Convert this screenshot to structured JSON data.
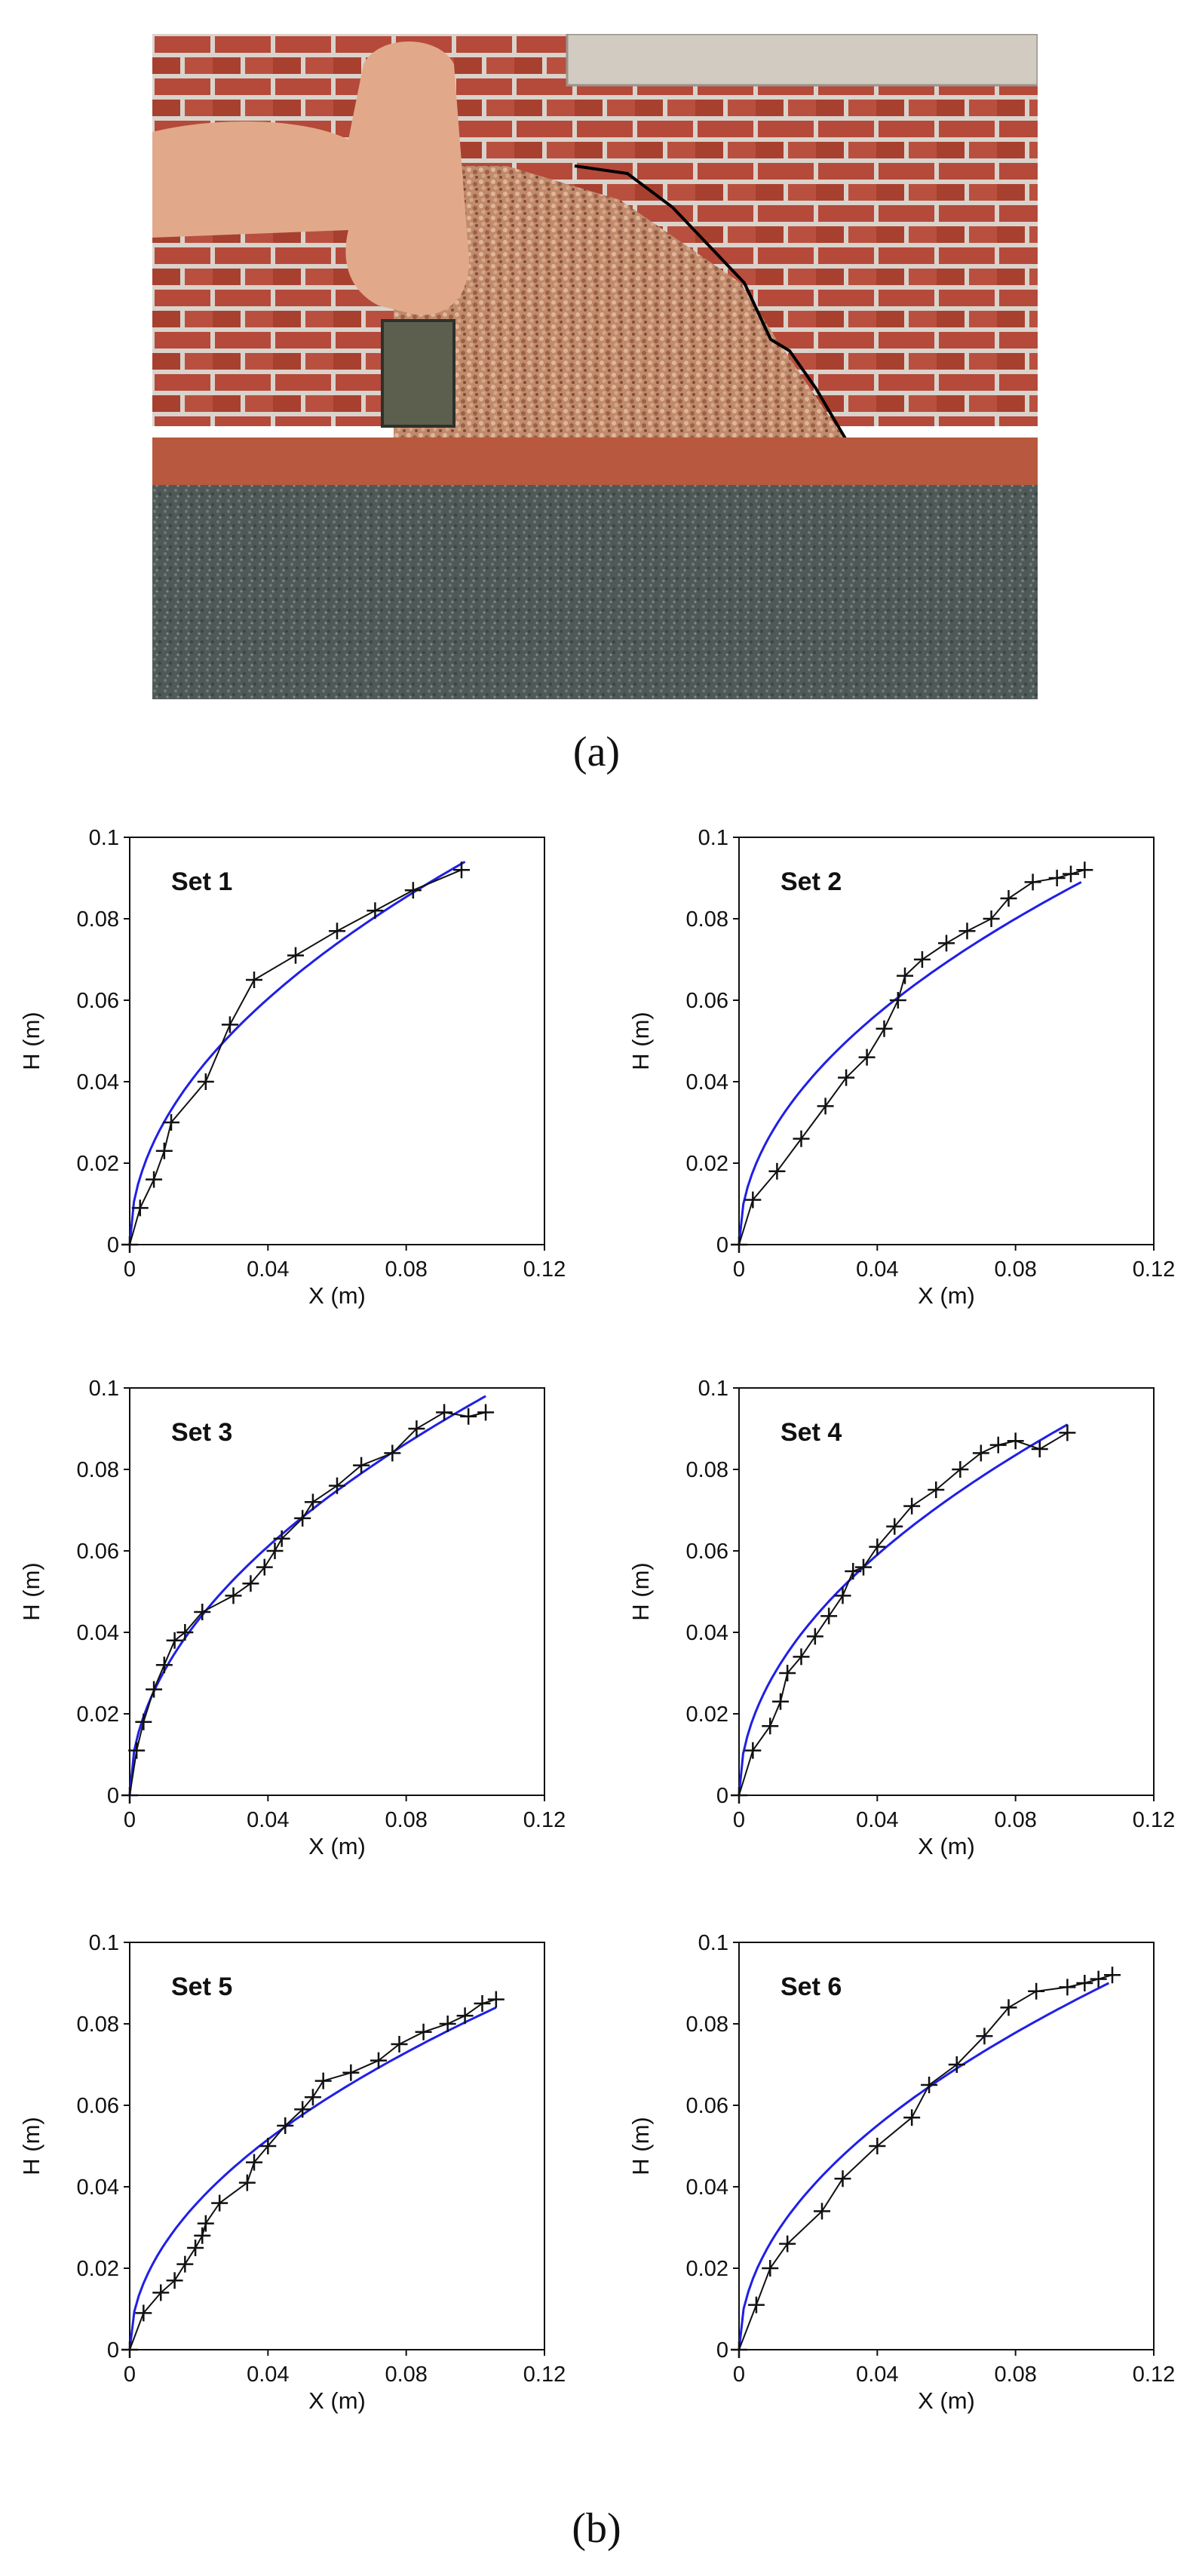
{
  "captions": {
    "a": "(a)",
    "b": "(b)"
  },
  "colors": {
    "fit": "#1f1fe6",
    "data": "#111111"
  },
  "chart_data": [
    {
      "type": "line",
      "title": "Set 1",
      "xlabel": "X (m)",
      "ylabel": "H (m)",
      "xlim": [
        0,
        0.12
      ],
      "ylim": [
        0,
        0.1
      ],
      "xticks": [
        0,
        0.04,
        0.08,
        0.12
      ],
      "yticks": [
        0,
        0.02,
        0.04,
        0.06,
        0.08,
        0.1
      ],
      "xtick_labels": [
        "0",
        "0.04",
        "0.08",
        "0.12"
      ],
      "ytick_labels": [
        "0",
        "0.02",
        "0.04",
        "0.06",
        "0.08",
        "0.1"
      ],
      "grid": false,
      "legend": "none",
      "series": [
        {
          "style": "line-plus-markers",
          "color": "#111111",
          "x": [
            0,
            0.003,
            0.007,
            0.01,
            0.012,
            0.022,
            0.029,
            0.036,
            0.048,
            0.06,
            0.071,
            0.082,
            0.096
          ],
          "y": [
            0,
            0.009,
            0.016,
            0.023,
            0.03,
            0.04,
            0.054,
            0.065,
            0.071,
            0.077,
            0.082,
            0.087,
            0.092
          ]
        },
        {
          "style": "fit-curve",
          "color": "#1f1fe6",
          "x_end": 0.097,
          "y_end": 0.094,
          "exponent": 0.5
        }
      ]
    },
    {
      "type": "line",
      "title": "Set 2",
      "xlabel": "X (m)",
      "ylabel": "H (m)",
      "xlim": [
        0,
        0.12
      ],
      "ylim": [
        0,
        0.1
      ],
      "xticks": [
        0,
        0.04,
        0.08,
        0.12
      ],
      "yticks": [
        0,
        0.02,
        0.04,
        0.06,
        0.08,
        0.1
      ],
      "xtick_labels": [
        "0",
        "0.04",
        "0.08",
        "0.12"
      ],
      "ytick_labels": [
        "0",
        "0.02",
        "0.04",
        "0.06",
        "0.08",
        "0.1"
      ],
      "grid": false,
      "legend": "none",
      "series": [
        {
          "style": "line-plus-markers",
          "color": "#111111",
          "x": [
            0,
            0.004,
            0.011,
            0.018,
            0.025,
            0.031,
            0.037,
            0.042,
            0.046,
            0.048,
            0.053,
            0.06,
            0.066,
            0.073,
            0.078,
            0.085,
            0.092,
            0.096,
            0.1
          ],
          "y": [
            0,
            0.011,
            0.018,
            0.026,
            0.034,
            0.041,
            0.046,
            0.053,
            0.06,
            0.066,
            0.07,
            0.074,
            0.077,
            0.08,
            0.085,
            0.089,
            0.09,
            0.091,
            0.092
          ]
        },
        {
          "style": "fit-curve",
          "color": "#1f1fe6",
          "x_end": 0.099,
          "y_end": 0.089,
          "exponent": 0.5
        }
      ]
    },
    {
      "type": "line",
      "title": "Set 3",
      "xlabel": "X (m)",
      "ylabel": "H (m)",
      "xlim": [
        0,
        0.12
      ],
      "ylim": [
        0,
        0.1
      ],
      "xticks": [
        0,
        0.04,
        0.08,
        0.12
      ],
      "yticks": [
        0,
        0.02,
        0.04,
        0.06,
        0.08,
        0.1
      ],
      "xtick_labels": [
        "0",
        "0.04",
        "0.08",
        "0.12"
      ],
      "ytick_labels": [
        "0",
        "0.02",
        "0.04",
        "0.06",
        "0.08",
        "0.1"
      ],
      "grid": false,
      "legend": "none",
      "series": [
        {
          "style": "line-plus-markers",
          "color": "#111111",
          "x": [
            0,
            0.002,
            0.004,
            0.007,
            0.01,
            0.013,
            0.016,
            0.021,
            0.03,
            0.035,
            0.039,
            0.042,
            0.044,
            0.05,
            0.053,
            0.06,
            0.067,
            0.076,
            0.083,
            0.091,
            0.098,
            0.103
          ],
          "y": [
            0,
            0.011,
            0.018,
            0.026,
            0.032,
            0.038,
            0.04,
            0.045,
            0.049,
            0.052,
            0.056,
            0.06,
            0.063,
            0.068,
            0.072,
            0.076,
            0.081,
            0.084,
            0.09,
            0.094,
            0.093,
            0.094
          ]
        },
        {
          "style": "fit-curve",
          "color": "#1f1fe6",
          "x_end": 0.103,
          "y_end": 0.098,
          "exponent": 0.5
        }
      ]
    },
    {
      "type": "line",
      "title": "Set 4",
      "xlabel": "X (m)",
      "ylabel": "H (m)",
      "xlim": [
        0,
        0.12
      ],
      "ylim": [
        0,
        0.1
      ],
      "xticks": [
        0,
        0.04,
        0.08,
        0.12
      ],
      "yticks": [
        0,
        0.02,
        0.04,
        0.06,
        0.08,
        0.1
      ],
      "xtick_labels": [
        "0",
        "0.04",
        "0.08",
        "0.12"
      ],
      "ytick_labels": [
        "0",
        "0.02",
        "0.04",
        "0.06",
        "0.08",
        "0.1"
      ],
      "grid": false,
      "legend": "none",
      "series": [
        {
          "style": "line-plus-markers",
          "color": "#111111",
          "x": [
            0,
            0.004,
            0.009,
            0.012,
            0.014,
            0.018,
            0.022,
            0.026,
            0.03,
            0.033,
            0.036,
            0.04,
            0.045,
            0.05,
            0.057,
            0.064,
            0.07,
            0.075,
            0.08,
            0.087,
            0.095
          ],
          "y": [
            0,
            0.011,
            0.017,
            0.023,
            0.03,
            0.034,
            0.039,
            0.044,
            0.049,
            0.055,
            0.056,
            0.061,
            0.066,
            0.071,
            0.075,
            0.08,
            0.084,
            0.086,
            0.087,
            0.085,
            0.089
          ]
        },
        {
          "style": "fit-curve",
          "color": "#1f1fe6",
          "x_end": 0.095,
          "y_end": 0.091,
          "exponent": 0.5
        }
      ]
    },
    {
      "type": "line",
      "title": "Set 5",
      "xlabel": "X (m)",
      "ylabel": "H (m)",
      "xlim": [
        0,
        0.12
      ],
      "ylim": [
        0,
        0.1
      ],
      "xticks": [
        0,
        0.04,
        0.08,
        0.12
      ],
      "yticks": [
        0,
        0.02,
        0.04,
        0.06,
        0.08,
        0.1
      ],
      "xtick_labels": [
        "0",
        "0.04",
        "0.08",
        "0.12"
      ],
      "ytick_labels": [
        "0",
        "0.02",
        "0.04",
        "0.06",
        "0.08",
        "0.1"
      ],
      "grid": false,
      "legend": "none",
      "series": [
        {
          "style": "line-plus-markers",
          "color": "#111111",
          "x": [
            0,
            0.004,
            0.009,
            0.013,
            0.016,
            0.019,
            0.021,
            0.022,
            0.026,
            0.034,
            0.036,
            0.04,
            0.045,
            0.05,
            0.053,
            0.056,
            0.064,
            0.072,
            0.078,
            0.085,
            0.092,
            0.097,
            0.102,
            0.106
          ],
          "y": [
            0,
            0.009,
            0.014,
            0.017,
            0.021,
            0.025,
            0.028,
            0.031,
            0.036,
            0.041,
            0.046,
            0.05,
            0.055,
            0.059,
            0.062,
            0.066,
            0.068,
            0.071,
            0.075,
            0.078,
            0.08,
            0.082,
            0.085,
            0.086
          ]
        },
        {
          "style": "fit-curve",
          "color": "#1f1fe6",
          "x_end": 0.106,
          "y_end": 0.084,
          "exponent": 0.5
        }
      ]
    },
    {
      "type": "line",
      "title": "Set 6",
      "xlabel": "X (m)",
      "ylabel": "H (m)",
      "xlim": [
        0,
        0.12
      ],
      "ylim": [
        0,
        0.1
      ],
      "xticks": [
        0,
        0.04,
        0.08,
        0.12
      ],
      "yticks": [
        0,
        0.02,
        0.04,
        0.06,
        0.08,
        0.1
      ],
      "xtick_labels": [
        "0",
        "0.04",
        "0.08",
        "0.12"
      ],
      "ytick_labels": [
        "0",
        "0.02",
        "0.04",
        "0.06",
        "0.08",
        "0.1"
      ],
      "grid": false,
      "legend": "none",
      "series": [
        {
          "style": "line-plus-markers",
          "color": "#111111",
          "x": [
            0,
            0.005,
            0.009,
            0.014,
            0.024,
            0.03,
            0.04,
            0.05,
            0.055,
            0.063,
            0.071,
            0.078,
            0.086,
            0.095,
            0.1,
            0.104,
            0.108
          ],
          "y": [
            0,
            0.011,
            0.02,
            0.026,
            0.034,
            0.042,
            0.05,
            0.057,
            0.065,
            0.07,
            0.077,
            0.084,
            0.088,
            0.089,
            0.09,
            0.091,
            0.092
          ]
        },
        {
          "style": "fit-curve",
          "color": "#1f1fe6",
          "x_end": 0.107,
          "y_end": 0.09,
          "exponent": 0.5
        }
      ]
    }
  ]
}
